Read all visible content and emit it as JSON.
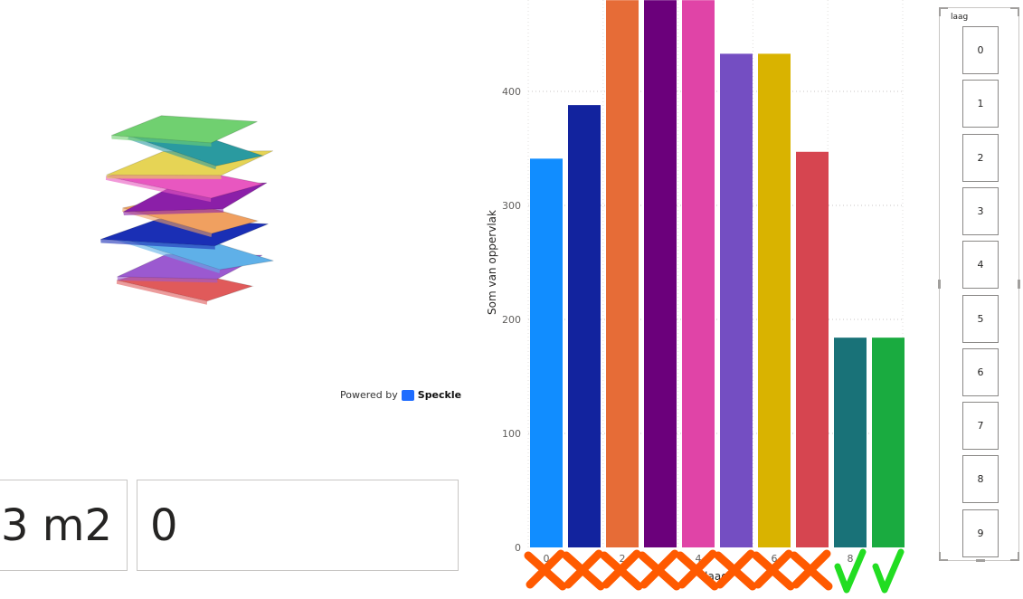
{
  "speckle": {
    "powered_by": "Powered by",
    "brand": "Speckle",
    "layer_colors": [
      "#e05a5a",
      "#9b59d0",
      "#5fb0e8",
      "#1a2fb5",
      "#f0a060",
      "#8b1fa8",
      "#e857c0",
      "#e6d455",
      "#2a9aa0",
      "#70d070"
    ]
  },
  "cards": [
    {
      "value": "3 m2"
    },
    {
      "value": "0"
    }
  ],
  "chart_data": {
    "type": "bar",
    "ylabel": "Som van oppervlak",
    "xlabel": "laag",
    "categories": [
      "0",
      "1",
      "2",
      "3",
      "4",
      "5",
      "6",
      "7",
      "8",
      "9"
    ],
    "x_tick_labels_shown": [
      "0",
      "",
      "2",
      "",
      "4",
      "",
      "6",
      "",
      "8",
      ""
    ],
    "values": [
      341,
      388,
      480,
      480,
      480,
      433,
      433,
      347,
      184,
      184
    ],
    "colors": [
      "#118dff",
      "#12239e",
      "#e66c37",
      "#6b007b",
      "#e044a7",
      "#744ec2",
      "#d9b300",
      "#d64550",
      "#197278",
      "#1aab40"
    ],
    "yticks": [
      0,
      100,
      200,
      300,
      400
    ],
    "ylim": [
      0,
      480
    ],
    "grid": true
  },
  "marks": [
    "cross",
    "cross",
    "cross",
    "cross",
    "cross",
    "cross",
    "cross",
    "cross",
    "check",
    "check"
  ],
  "mark_colors": {
    "cross": "#ff5a00",
    "check": "#22dd22"
  },
  "slicer": {
    "title": "laag",
    "items": [
      "0",
      "1",
      "2",
      "3",
      "4",
      "5",
      "6",
      "7",
      "8",
      "9"
    ]
  }
}
